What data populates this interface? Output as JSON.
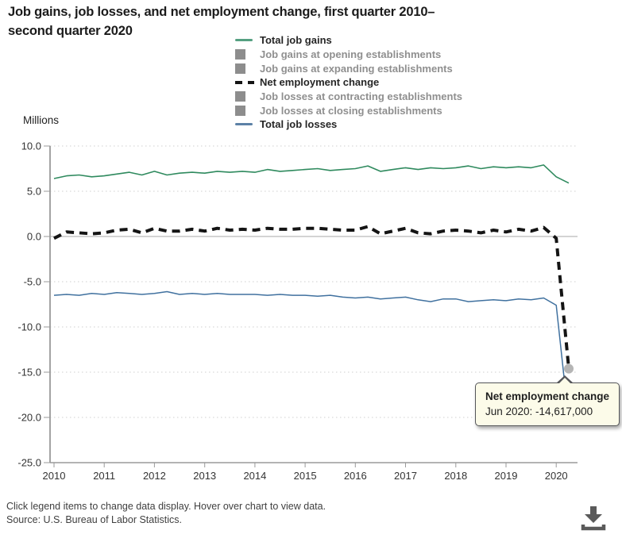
{
  "title": {
    "line1": "Job gains, job losses, and net employment change, first quarter 2010–",
    "line2": "second quarter 2020"
  },
  "legend": {
    "items": [
      {
        "label": "Total job gains",
        "marker": "green-line",
        "active": true
      },
      {
        "label": "Job gains at opening establishments",
        "marker": "gray-square",
        "active": false
      },
      {
        "label": "Job gains at expanding establishments",
        "marker": "gray-square",
        "active": false
      },
      {
        "label": "Net employment change",
        "marker": "black-dashed-line",
        "active": true
      },
      {
        "label": "Job losses at contracting establishments",
        "marker": "gray-square",
        "active": false
      },
      {
        "label": "Job losses at closing establishments",
        "marker": "gray-square",
        "active": false
      },
      {
        "label": "Total job losses",
        "marker": "blue-line",
        "active": true
      }
    ]
  },
  "chart_data": {
    "type": "line",
    "title": "Job gains, job losses, and net employment change, first quarter 2010–second quarter 2020",
    "unit_label": "Millions",
    "x_frequency": "quarterly",
    "x_range": "Q1 2010 – Q2 2020",
    "x_tick_labels": [
      "2010",
      "2011",
      "2012",
      "2013",
      "2014",
      "2015",
      "2016",
      "2017",
      "2018",
      "2019",
      "2020"
    ],
    "y_tick_labels": [
      "10.0",
      "5.0",
      "0.0",
      "-5.0",
      "-10.0",
      "-15.0",
      "-20.0",
      "-25.0"
    ],
    "yticks": [
      10,
      5,
      0,
      -5,
      -10,
      -15,
      -20,
      -25
    ],
    "ylim": [
      -25,
      10
    ],
    "grid": "dotted horizontal gridlines, solid zero line",
    "legend_position": "top",
    "series": [
      {
        "id": "gains",
        "name": "Total job gains",
        "color": "#2f8a5e",
        "width": 1.6,
        "dash": "",
        "values": [
          6.4,
          6.7,
          6.8,
          6.6,
          6.7,
          6.9,
          7.1,
          6.8,
          7.2,
          6.8,
          7.0,
          7.1,
          7.0,
          7.2,
          7.1,
          7.2,
          7.1,
          7.4,
          7.2,
          7.3,
          7.4,
          7.5,
          7.3,
          7.4,
          7.5,
          7.8,
          7.2,
          7.4,
          7.6,
          7.4,
          7.6,
          7.5,
          7.6,
          7.8,
          7.5,
          7.7,
          7.6,
          7.7,
          7.6,
          7.9,
          6.6,
          5.9
        ]
      },
      {
        "id": "losses",
        "name": "Total job losses",
        "color": "#40719f",
        "width": 1.5,
        "dash": "",
        "values": [
          -6.5,
          -6.4,
          -6.5,
          -6.3,
          -6.4,
          -6.2,
          -6.3,
          -6.4,
          -6.3,
          -6.1,
          -6.4,
          -6.3,
          -6.4,
          -6.3,
          -6.4,
          -6.4,
          -6.4,
          -6.5,
          -6.4,
          -6.5,
          -6.5,
          -6.6,
          -6.5,
          -6.7,
          -6.8,
          -6.7,
          -6.9,
          -6.8,
          -6.7,
          -7.0,
          -7.2,
          -6.9,
          -6.9,
          -7.2,
          -7.1,
          -7.0,
          -7.1,
          -6.9,
          -7.0,
          -6.8,
          -7.6,
          -20.4
        ]
      },
      {
        "id": "net",
        "name": "Net employment change",
        "color": "#141414",
        "width": 4,
        "dash": "10 7",
        "values": [
          -0.2,
          0.5,
          0.4,
          0.3,
          0.4,
          0.7,
          0.8,
          0.4,
          0.9,
          0.6,
          0.6,
          0.8,
          0.6,
          0.9,
          0.7,
          0.8,
          0.7,
          0.9,
          0.8,
          0.8,
          0.9,
          0.9,
          0.8,
          0.7,
          0.7,
          1.1,
          0.3,
          0.6,
          0.9,
          0.4,
          0.3,
          0.6,
          0.7,
          0.6,
          0.4,
          0.7,
          0.5,
          0.8,
          0.6,
          1.0,
          -0.2,
          -14.617
        ]
      }
    ],
    "hover_point": {
      "series": "Net employment change",
      "x_index": 41,
      "period": "Jun 2020",
      "value": -14617000,
      "value_millions": -14.617
    }
  },
  "tooltip": {
    "title": "Net employment change",
    "value": "Jun 2020: -14,617,000"
  },
  "footer": {
    "line1": "Click legend items to change data display. Hover over chart to view data.",
    "line2": "Source: U.S. Bureau of Labor Statistics."
  },
  "icons": {
    "download": "download-icon"
  },
  "colors": {
    "gains_line": "#2f8a5e",
    "losses_line": "#40719f",
    "net_line": "#141414",
    "legend_inactive_text": "#8f8f8f",
    "legend_inactive_square": "#8d8d8d",
    "tooltip_bg": "#fcfbe9",
    "tooltip_border": "#55565a",
    "hover_marker": "#b5b5b5"
  }
}
